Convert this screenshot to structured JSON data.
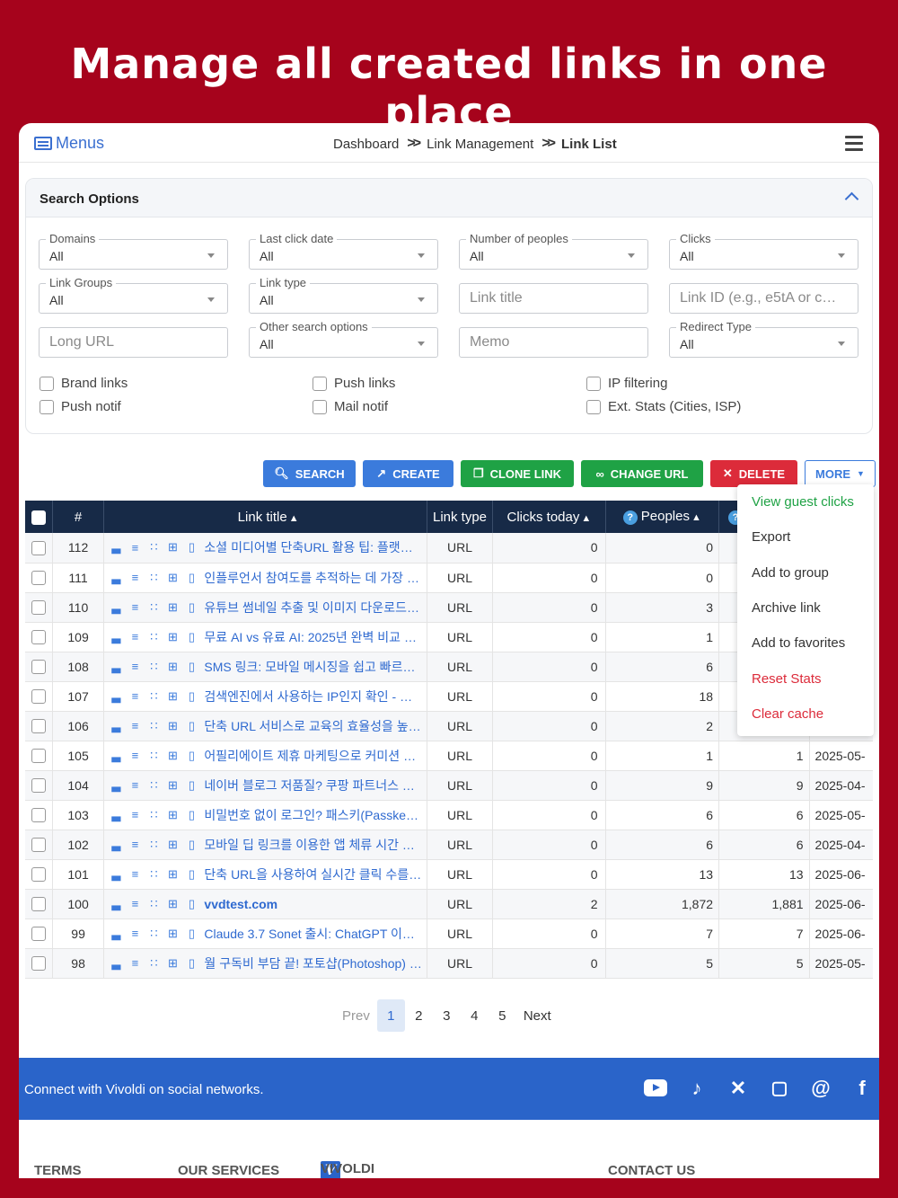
{
  "headline": "Manage all created links in one place",
  "topbar": {
    "menus_label": "Menus",
    "breadcrumb": [
      "Dashboard",
      "Link Management",
      "Link List"
    ]
  },
  "search_options": {
    "title": "Search Options",
    "fields": {
      "domains": {
        "label": "Domains",
        "value": "All"
      },
      "last_click_date": {
        "label": "Last click date",
        "value": "All"
      },
      "number_of_peoples": {
        "label": "Number of peoples",
        "value": "All"
      },
      "clicks": {
        "label": "Clicks",
        "value": "All"
      },
      "link_groups": {
        "label": "Link Groups",
        "value": "All"
      },
      "link_type": {
        "label": "Link type",
        "value": "All"
      },
      "link_title_placeholder": "Link title",
      "link_id_placeholder": "Link ID (e.g., e5tA or c…",
      "long_url_placeholder": "Long URL",
      "other_search_options": {
        "label": "Other search options",
        "value": "All"
      },
      "memo_placeholder": "Memo",
      "redirect_type": {
        "label": "Redirect Type",
        "value": "All"
      }
    },
    "checkboxes": {
      "brand_links": "Brand links",
      "push_links": "Push links",
      "ip_filtering": "IP filtering",
      "push_notif": "Push notif",
      "mail_notif": "Mail notif",
      "ext_stats": "Ext. Stats (Cities, ISP)"
    }
  },
  "actions": {
    "search": "SEARCH",
    "create": "CREATE",
    "clone": "CLONE LINK",
    "change_url": "CHANGE URL",
    "delete": "DELETE",
    "more": "MORE"
  },
  "more_menu": [
    {
      "label": "View guest clicks",
      "color": "#1fa245"
    },
    {
      "label": "Export",
      "color": "#333333"
    },
    {
      "label": "Add to group",
      "color": "#333333"
    },
    {
      "label": "Archive link",
      "color": "#333333"
    },
    {
      "label": "Add to favorites",
      "color": "#333333"
    },
    {
      "label": "Reset Stats",
      "color": "#dc2b3a"
    },
    {
      "label": "Clear cache",
      "color": "#dc2b3a"
    }
  ],
  "table": {
    "headers": {
      "num": "#",
      "title": "Link title",
      "type": "Link type",
      "clicks_today": "Clicks today",
      "peoples": "Peoples"
    },
    "rows": [
      {
        "id": "112",
        "title": "소셜 미디어별 단축URL 활용 팁: 플랫폼…",
        "type": "URL",
        "today": "0",
        "peoples": "0",
        "clicks": "",
        "date": ""
      },
      {
        "id": "111",
        "title": "인플루언서 참여도를 추적하는 데 가장 …",
        "type": "URL",
        "today": "0",
        "peoples": "0",
        "clicks": "",
        "date": ""
      },
      {
        "id": "110",
        "title": "유튜브 썸네일 추출 및 이미지 다운로드 -…",
        "type": "URL",
        "today": "0",
        "peoples": "3",
        "clicks": "",
        "date": ""
      },
      {
        "id": "109",
        "title": "무료 AI vs 유료 AI: 2025년 완벽 비교 …",
        "type": "URL",
        "today": "0",
        "peoples": "1",
        "clicks": "",
        "date": ""
      },
      {
        "id": "108",
        "title": "SMS 링크: 모바일 메시징을 쉽고 빠르…",
        "type": "URL",
        "today": "0",
        "peoples": "6",
        "clicks": "",
        "date": ""
      },
      {
        "id": "107",
        "title": "검색엔진에서 사용하는 IP인지 확인 - 구…",
        "type": "URL",
        "today": "0",
        "peoples": "18",
        "clicks": "",
        "date": ""
      },
      {
        "id": "106",
        "title": "단축 URL 서비스로 교육의 효율성을 높…",
        "type": "URL",
        "today": "0",
        "peoples": "2",
        "clicks": "",
        "date": ""
      },
      {
        "id": "105",
        "title": "어필리에이트 제휴 마케팅으로 커미션 지…",
        "type": "URL",
        "today": "0",
        "peoples": "1",
        "clicks": "1",
        "date": "2025-05-"
      },
      {
        "id": "104",
        "title": "네이버 블로그 저품질? 쿠팡 파트너스 링…",
        "type": "URL",
        "today": "0",
        "peoples": "9",
        "clicks": "9",
        "date": "2025-04-"
      },
      {
        "id": "103",
        "title": "비밀번호 없이 로그인? 패스키(Passkey…",
        "type": "URL",
        "today": "0",
        "peoples": "6",
        "clicks": "6",
        "date": "2025-05-"
      },
      {
        "id": "102",
        "title": "모바일 딥 링크를 이용한 앱 체류 시간 극…",
        "type": "URL",
        "today": "0",
        "peoples": "6",
        "clicks": "6",
        "date": "2025-04-"
      },
      {
        "id": "101",
        "title": "단축 URL을 사용하여 실시간 클릭 수를 …",
        "type": "URL",
        "today": "0",
        "peoples": "13",
        "clicks": "13",
        "date": "2025-06-"
      },
      {
        "id": "100",
        "title": "vvdtest.com",
        "type": "URL",
        "today": "2",
        "peoples": "1,872",
        "clicks": "1,881",
        "date": "2025-06-"
      },
      {
        "id": "99",
        "title": "Claude 3.7 Sonet 출시: ChatGPT 이…",
        "type": "URL",
        "today": "0",
        "peoples": "7",
        "clicks": "7",
        "date": "2025-06-"
      },
      {
        "id": "98",
        "title": "월 구독비 부담 끝! 포토샵(Photoshop) …",
        "type": "URL",
        "today": "0",
        "peoples": "5",
        "clicks": "5",
        "date": "2025-05-"
      }
    ]
  },
  "pagination": {
    "prev": "Prev",
    "pages": [
      "1",
      "2",
      "3",
      "4",
      "5"
    ],
    "next": "Next",
    "current": "1"
  },
  "footer": {
    "connect": "Connect with Vivoldi on social networks.",
    "social": [
      "youtube-icon",
      "tiktok-icon",
      "x-icon",
      "instagram-icon",
      "threads-icon",
      "facebook-icon"
    ],
    "links": {
      "terms": "TERMS",
      "services": "OUR SERVICES",
      "brand": "VIVOLDI",
      "contact": "CONTACT US"
    }
  }
}
